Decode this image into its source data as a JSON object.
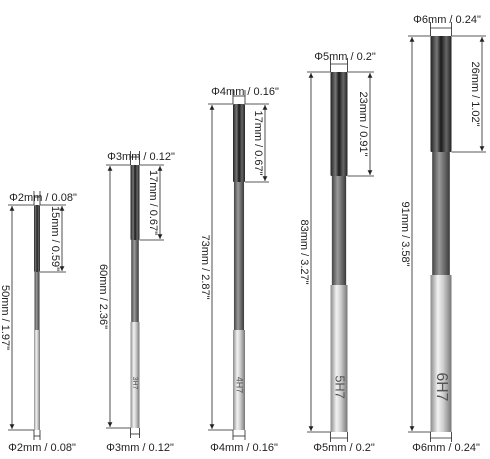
{
  "tools": [
    {
      "top_diameter": "Φ2mm / 0.08\"",
      "flute_length": "15mm / 0.59\"",
      "total_length": "50mm / 1.97\"",
      "bottom_diameter": "Φ2mm / 0.08\""
    },
    {
      "top_diameter": "Φ3mm / 0.12\"",
      "flute_length": "17mm / 0.67\"",
      "total_length": "60mm / 2.36\"",
      "bottom_diameter": "Φ3mm / 0.12\"",
      "marking": "3H7"
    },
    {
      "top_diameter": "Φ4mm / 0.16\"",
      "flute_length": "17mm / 0.67\"",
      "total_length": "73mm / 2.87\"",
      "bottom_diameter": "Φ4mm / 0.16\"",
      "marking": "4H7"
    },
    {
      "top_diameter": "Φ5mm / 0.2\"",
      "flute_length": "23mm / 0.91\"",
      "total_length": "83mm / 3.27\"",
      "bottom_diameter": "Φ5mm / 0.2\"",
      "marking": "5H7"
    },
    {
      "top_diameter": "Φ6mm / 0.24\"",
      "flute_length": "26mm / 1.02\"",
      "total_length": "91mm / 3.58\"",
      "bottom_diameter": "Φ6mm / 0.24\"",
      "marking": "6H7"
    }
  ]
}
